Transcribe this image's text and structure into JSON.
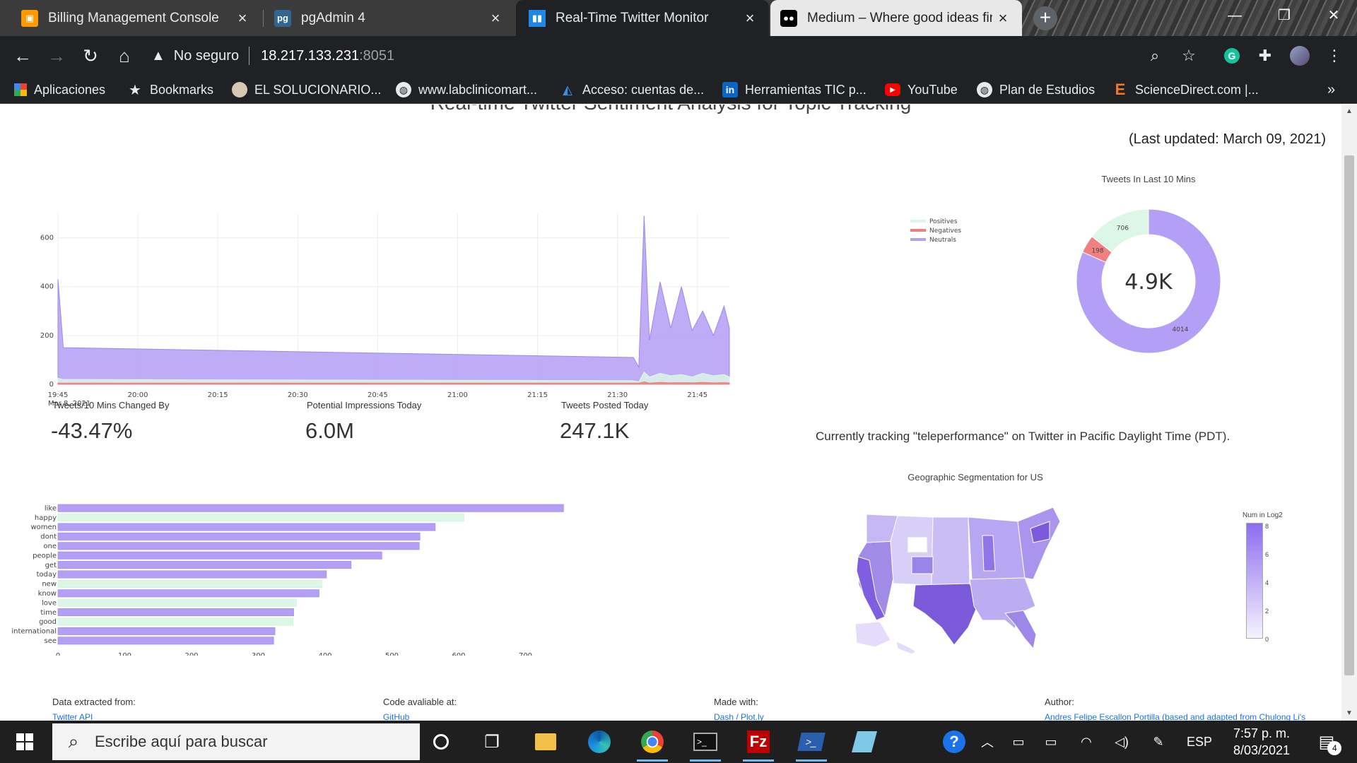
{
  "browser": {
    "tabs": [
      {
        "title": "Billing Management Console",
        "favicon": "aws-cube-icon",
        "active": false
      },
      {
        "title": "pgAdmin 4",
        "favicon": "pgadmin-icon",
        "active": false
      },
      {
        "title": "Real-Time Twitter Monitor",
        "favicon": "bar-chart-icon",
        "active": true
      },
      {
        "title": "Medium – Where good ideas find",
        "favicon": "medium-icon",
        "active": false
      }
    ],
    "address": {
      "security_label": "No seguro",
      "host": "18.217.133.231",
      "port": ":8051"
    },
    "bookmarks": [
      {
        "label": "Aplicaciones",
        "icon": "apps-grid-icon"
      },
      {
        "label": "Bookmarks",
        "icon": "star-icon"
      },
      {
        "label": "EL SOLUCIONARIO...",
        "icon": "avatar-icon"
      },
      {
        "label": "www.labclinicomart...",
        "icon": "globe-icon"
      },
      {
        "label": "Acceso: cuentas de...",
        "icon": "azure-icon"
      },
      {
        "label": "Herramientas TIC p...",
        "icon": "linkedin-icon"
      },
      {
        "label": "YouTube",
        "icon": "youtube-icon"
      },
      {
        "label": "Plan de Estudios",
        "icon": "globe-icon"
      },
      {
        "label": "ScienceDirect.com |...",
        "icon": "elsevier-icon"
      }
    ],
    "bookmarks_overflow": "»"
  },
  "dashboard": {
    "title": "Real-time Twitter Sentiment Analysis for Topic Tracking",
    "last_updated": "(Last updated: March 09, 2021)",
    "colors": {
      "positive": "#dcf7e7",
      "negative": "#f08080",
      "neutral": "#b39ff5",
      "neutral_dark": "#9e86f0"
    },
    "donut_title": "Tweets In Last 10 Mins",
    "donut_center": "4.9K",
    "donut_slices": [
      {
        "label": "Positives",
        "value": 706
      },
      {
        "label": "Negatives",
        "value": 198
      },
      {
        "label": "Neutrals",
        "value": 4014
      }
    ],
    "metrics": [
      {
        "label": "Tweets/10 Mins Changed By",
        "value": "-43.47%"
      },
      {
        "label": "Potential Impressions Today",
        "value": "6.0M"
      },
      {
        "label": "Tweets Posted Today",
        "value": "247.1K"
      }
    ],
    "tracking": "Currently tracking \"teleperformance\" on Twitter in Pacific Daylight Time (PDT).",
    "map_title": "Geographic Segmentation for US",
    "map_colorbar_title": "Num in Log2",
    "map_colorbar_ticks": [
      "8",
      "6",
      "4",
      "2",
      "0"
    ],
    "footer": [
      {
        "label": "Data extracted from:",
        "link": "Twitter API"
      },
      {
        "label": "Code avaliable at:",
        "link": "GitHub"
      },
      {
        "label": "Made with:",
        "link": "Dash / Plot.ly"
      },
      {
        "label": "Author:",
        "link": "Andres Felipe Escallon Portilla (based and adapted from Chulong Li's"
      }
    ]
  },
  "chart_data": [
    {
      "type": "area",
      "title": "",
      "xlabel": "",
      "ylabel": "",
      "x_ticks": [
        "19:45",
        "20:00",
        "20:15",
        "20:30",
        "20:45",
        "21:00",
        "21:15",
        "21:30",
        "21:45"
      ],
      "x_date_label": "Mar 8, 2021",
      "x_range": [
        "19:45",
        "21:51"
      ],
      "ylim": [
        0,
        700
      ],
      "y_ticks": [
        0,
        200,
        400,
        600
      ],
      "legend": "top-right",
      "x": [
        "19:45",
        "19:46",
        "21:33",
        "21:34",
        "21:35",
        "21:36",
        "21:38",
        "21:40",
        "21:42",
        "21:44",
        "21:46",
        "21:48",
        "21:50",
        "21:51"
      ],
      "series": [
        {
          "name": "Positives",
          "values": [
            25,
            20,
            15,
            10,
            50,
            30,
            45,
            35,
            40,
            30,
            45,
            35,
            40,
            30
          ]
        },
        {
          "name": "Negatives",
          "values": [
            5,
            5,
            5,
            5,
            10,
            5,
            8,
            6,
            7,
            6,
            8,
            6,
            7,
            6
          ]
        },
        {
          "name": "Neutrals",
          "values": [
            430,
            150,
            110,
            70,
            690,
            180,
            420,
            230,
            400,
            220,
            300,
            200,
            320,
            230
          ]
        }
      ],
      "grid": true
    },
    {
      "type": "bar",
      "orientation": "horizontal",
      "categories": [
        "like",
        "happy",
        "women",
        "dont",
        "one",
        "people",
        "get",
        "today",
        "new",
        "know",
        "love",
        "time",
        "good",
        "international",
        "see"
      ],
      "values": [
        757,
        608,
        565,
        542,
        541,
        485,
        439,
        402,
        395,
        391,
        357,
        353,
        352,
        325,
        323
      ],
      "sentiment": [
        "neutral",
        "positive",
        "neutral",
        "neutral",
        "neutral",
        "neutral",
        "neutral",
        "neutral",
        "positive",
        "neutral",
        "positive",
        "neutral",
        "positive",
        "neutral",
        "neutral"
      ],
      "xlim": [
        0,
        800
      ],
      "x_ticks": [
        0,
        100,
        200,
        300,
        400,
        500,
        600,
        700
      ],
      "title": "",
      "xlabel": "",
      "ylabel": ""
    },
    {
      "type": "pie",
      "hole": true,
      "title": "Tweets In Last 10 Mins",
      "categories": [
        "Positives",
        "Negatives",
        "Neutrals"
      ],
      "values": [
        706,
        198,
        4014
      ]
    }
  ],
  "taskbar": {
    "search_placeholder": "Escribe aquí para buscar",
    "apps": [
      "cortana-icon",
      "task-view-icon",
      "file-explorer-icon",
      "edge-icon",
      "chrome-icon",
      "terminal-icon",
      "filezilla-icon",
      "powershell-icon",
      "notepad-icon"
    ],
    "tray_lang": "ESP",
    "time": "7:57 p. m.",
    "date": "8/03/2021",
    "notifications": "4"
  }
}
